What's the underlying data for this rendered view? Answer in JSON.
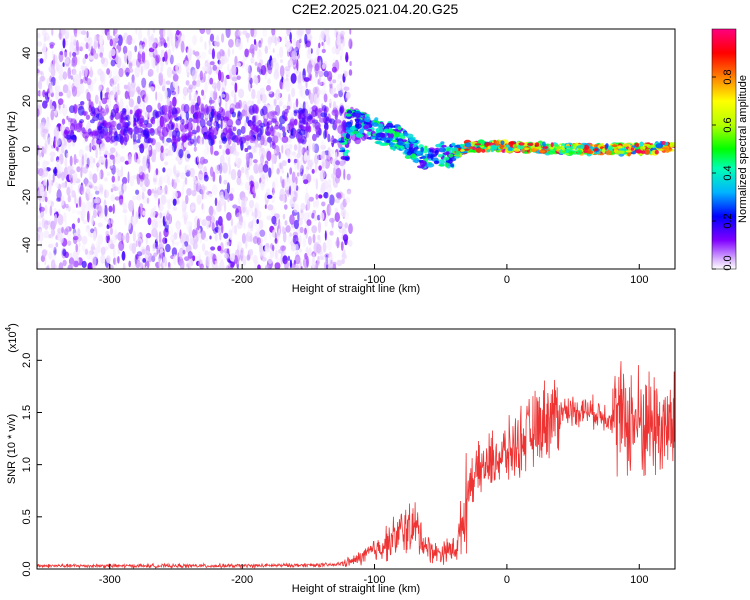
{
  "title": "C2E2.2025.021.04.20.G25",
  "chart_data": [
    {
      "type": "heatmap",
      "xlabel": "Height of straight line (km)",
      "ylabel": "Frequency (Hz)",
      "xlim": [
        -355,
        127
      ],
      "ylim": [
        -50,
        50
      ],
      "xticks": [
        -300,
        -200,
        -100,
        0,
        100
      ],
      "yticks": [
        -40,
        -20,
        0,
        20,
        40
      ],
      "colorbar": {
        "label": "Normalized spectral amplitude",
        "range": [
          0.0,
          1.0
        ],
        "ticks": [
          0.0,
          0.2,
          0.4,
          0.6,
          0.8
        ],
        "colormap": [
          "#ffffff",
          "#d9b3ff",
          "#8000ff",
          "#0000ff",
          "#00b4ff",
          "#00ffb4",
          "#00ff00",
          "#b4ff00",
          "#ffff00",
          "#ff8000",
          "#ff0000",
          "#ff0080"
        ]
      },
      "ridge": [
        {
          "x": -120,
          "y": 12
        },
        {
          "x": -100,
          "y": 8
        },
        {
          "x": -80,
          "y": 4
        },
        {
          "x": -65,
          "y": -3
        },
        {
          "x": -50,
          "y": -2
        },
        {
          "x": -40,
          "y": -2
        },
        {
          "x": -30,
          "y": 1
        },
        {
          "x": -20,
          "y": 1
        },
        {
          "x": 0,
          "y": 1
        },
        {
          "x": 40,
          "y": 0
        },
        {
          "x": 80,
          "y": 0
        },
        {
          "x": 100,
          "y": 0
        },
        {
          "x": 127,
          "y": 1
        }
      ]
    },
    {
      "type": "line",
      "xlabel": "Height of straight line (km)",
      "ylabel": "SNR (10 * v/v)",
      "exponent_label": "(x10",
      "exponent_power": "4",
      "exponent_close": ")",
      "xlim": [
        -355,
        127
      ],
      "ylim": [
        0,
        2.3
      ],
      "xticks": [
        -300,
        -200,
        -100,
        0,
        100
      ],
      "yticks": [
        0.0,
        0.5,
        1.0,
        1.5,
        2.0
      ],
      "ytick_labels": [
        "0.0",
        "0.5",
        "1.0",
        "1.5",
        "2.0"
      ],
      "series_color": "#ee3333",
      "envelope": [
        {
          "x": -355,
          "y": 0.03
        },
        {
          "x": -200,
          "y": 0.03
        },
        {
          "x": -130,
          "y": 0.04
        },
        {
          "x": -115,
          "y": 0.08
        },
        {
          "x": -100,
          "y": 0.18
        },
        {
          "x": -85,
          "y": 0.3
        },
        {
          "x": -75,
          "y": 0.4
        },
        {
          "x": -68,
          "y": 0.38
        },
        {
          "x": -60,
          "y": 0.2
        },
        {
          "x": -52,
          "y": 0.15
        },
        {
          "x": -45,
          "y": 0.18
        },
        {
          "x": -38,
          "y": 0.2
        },
        {
          "x": -32,
          "y": 0.55
        },
        {
          "x": -28,
          "y": 0.85
        },
        {
          "x": -20,
          "y": 0.95
        },
        {
          "x": -10,
          "y": 1.05
        },
        {
          "x": 0,
          "y": 1.1
        },
        {
          "x": 10,
          "y": 1.22
        },
        {
          "x": 20,
          "y": 1.32
        },
        {
          "x": 30,
          "y": 1.45
        },
        {
          "x": 45,
          "y": 1.52
        },
        {
          "x": 60,
          "y": 1.52
        },
        {
          "x": 80,
          "y": 1.45
        },
        {
          "x": 95,
          "y": 1.42
        },
        {
          "x": 110,
          "y": 1.4
        },
        {
          "x": 127,
          "y": 1.32
        }
      ]
    }
  ]
}
